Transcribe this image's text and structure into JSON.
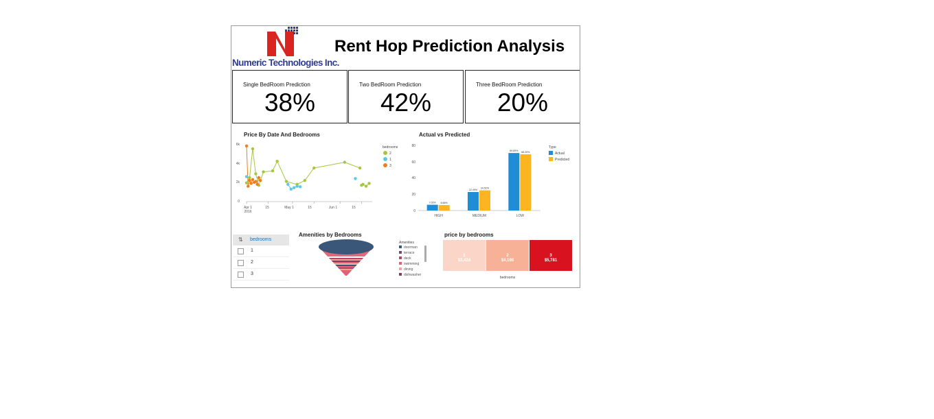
{
  "header": {
    "title": "Rent Hop Prediction Analysis",
    "logo_text": "Numeric Technologies Inc."
  },
  "kpis": [
    {
      "label": "Single BedRoom Prediction",
      "value": "38%"
    },
    {
      "label": "Two BedRoom Prediction",
      "value": "42%"
    },
    {
      "label": "Three BedRoom Prediction",
      "value": "20%"
    }
  ],
  "colors": {
    "bed1": "#5bc8e4",
    "bed2": "#a4c83a",
    "bed3": "#ef7d1a",
    "actual": "#1f8dd6",
    "predicted": "#fbb521",
    "logo_red": "#d9241f",
    "logo_blue": "#2f3c94"
  },
  "price_chart": {
    "title": "Price By Date And Bedrooms",
    "legend_title": "bedrooms",
    "legend": [
      "2",
      "1",
      "3"
    ],
    "y_ticks": [
      "6k",
      "4k",
      "2k",
      "0"
    ],
    "x_ticks": [
      "Apr 1",
      "15",
      "May 1",
      "15",
      "Jun 1",
      "15"
    ],
    "x_year": "2016"
  },
  "bar_chart": {
    "title": "Actual vs Predicted",
    "legend_title": "Type",
    "legend": [
      "Actual",
      "Predicted"
    ],
    "y_ticks": [
      "80",
      "60",
      "40",
      "20",
      "0"
    ]
  },
  "filter": {
    "header": "bedrooms",
    "items": [
      "1",
      "2",
      "3"
    ]
  },
  "amenities": {
    "title": "Amenities by Bedrooms",
    "legend_title": "Amenities",
    "items": [
      {
        "name": "doorman",
        "color": "#3a5779"
      },
      {
        "name": "terrace",
        "color": "#6b4a7a"
      },
      {
        "name": "deck",
        "color": "#b7436b"
      },
      {
        "name": "swimming",
        "color": "#e0607a"
      },
      {
        "name": "dining",
        "color": "#f4a392"
      },
      {
        "name": "dishwasher",
        "color": "#7a3f5a"
      }
    ]
  },
  "treemap": {
    "title": "price by bedrooms",
    "xlabel": "bedrooms",
    "cells": [
      {
        "label": "1",
        "value": "$3,424",
        "color": "#fbd6c8"
      },
      {
        "label": "2",
        "value": "$4,198",
        "color": "#f6b196"
      },
      {
        "label": "3",
        "value": "$5,781",
        "color": "#d9121f"
      }
    ]
  },
  "chart_data": [
    {
      "type": "scatter",
      "title": "Price By Date And Bedrooms",
      "ylim": [
        0,
        6000
      ],
      "legend_placement": "right",
      "series": [
        {
          "name": "2",
          "points": [
            [
              "2016-04-01",
              1950
            ],
            [
              "2016-04-03",
              2500
            ],
            [
              "2016-04-05",
              5500
            ],
            [
              "2016-04-07",
              2900
            ],
            [
              "2016-04-09",
              1700
            ],
            [
              "2016-04-12",
              3100
            ],
            [
              "2016-04-18",
              3200
            ],
            [
              "2016-04-21",
              4200
            ],
            [
              "2016-04-27",
              2100
            ],
            [
              "2016-05-04",
              1800
            ],
            [
              "2016-05-09",
              2200
            ],
            [
              "2016-05-15",
              3500
            ],
            [
              "2016-06-04",
              4100
            ],
            [
              "2016-06-14",
              3500
            ],
            [
              "2016-06-15",
              1700
            ],
            [
              "2016-06-16",
              1800
            ],
            [
              "2016-06-18",
              1600
            ],
            [
              "2016-06-20",
              1900
            ]
          ]
        },
        {
          "name": "1",
          "points": [
            [
              "2016-04-01",
              2600
            ],
            [
              "2016-04-28",
              1800
            ],
            [
              "2016-04-30",
              1300
            ],
            [
              "2016-05-02",
              1450
            ],
            [
              "2016-05-04",
              1600
            ],
            [
              "2016-05-06",
              1550
            ],
            [
              "2016-06-11",
              2400
            ]
          ]
        },
        {
          "name": "3",
          "points": [
            [
              "2016-04-01",
              5800
            ],
            [
              "2016-04-02",
              1600
            ],
            [
              "2016-04-03",
              2200
            ],
            [
              "2016-04-04",
              1900
            ],
            [
              "2016-04-05",
              2300
            ],
            [
              "2016-04-06",
              2000
            ],
            [
              "2016-04-07",
              2100
            ],
            [
              "2016-04-08",
              1800
            ],
            [
              "2016-04-09",
              2500
            ],
            [
              "2016-04-10",
              2200
            ]
          ]
        }
      ]
    },
    {
      "type": "bar",
      "title": "Actual vs Predicted",
      "categories": [
        "HIGH",
        "MEDIUM",
        "LOW"
      ],
      "ylim": [
        0,
        80
      ],
      "legend_placement": "top-right",
      "series": [
        {
          "name": "Actual",
          "values": [
            7.02,
            22.49,
            69.89
          ],
          "labels": [
            "7.02%",
            "22.49%",
            "69.89%"
          ]
        },
        {
          "name": "Predicted",
          "values": [
            6.66,
            24.52,
            68.29
          ],
          "labels": [
            "6.66%",
            "24.52%",
            "68.29%"
          ]
        }
      ]
    },
    {
      "type": "table",
      "title": "price by bedrooms",
      "categories": [
        "1",
        "2",
        "3"
      ],
      "values": [
        3424,
        4198,
        5781
      ]
    }
  ]
}
